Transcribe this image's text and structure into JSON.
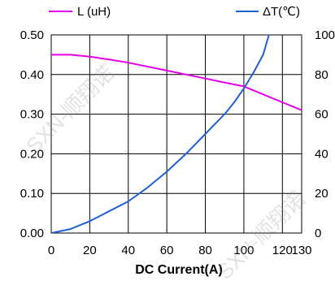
{
  "chart_data": {
    "type": "line",
    "xlabel": "DC Current(A)",
    "x_ticks": [
      "0",
      "20",
      "40",
      "60",
      "80",
      "100",
      "120",
      "130"
    ],
    "xlim": [
      0,
      130
    ],
    "y_left": {
      "ticks": [
        "0.00",
        "0.10",
        "0.20",
        "0.30",
        "0.40",
        "0.50"
      ],
      "lim": [
        0,
        0.5
      ]
    },
    "y_right": {
      "ticks": [
        "0",
        "20",
        "40",
        "60",
        "80",
        "100"
      ],
      "lim": [
        0,
        100
      ]
    },
    "grid": true,
    "legend_position": "top",
    "series": [
      {
        "name": "L (uH)",
        "axis": "left",
        "color": "#e600e6",
        "x": [
          0,
          10,
          20,
          30,
          40,
          50,
          60,
          70,
          80,
          90,
          100,
          110,
          120,
          130
        ],
        "y": [
          0.45,
          0.45,
          0.445,
          0.438,
          0.43,
          0.42,
          0.41,
          0.4,
          0.39,
          0.38,
          0.37,
          0.35,
          0.33,
          0.31
        ]
      },
      {
        "name": "ΔT(℃)",
        "axis": "right",
        "color": "#1f5fd6",
        "x": [
          0,
          10,
          20,
          30,
          40,
          50,
          60,
          70,
          80,
          90,
          95,
          100,
          105,
          110,
          113
        ],
        "y": [
          0,
          2,
          6,
          11,
          16,
          23,
          31,
          40,
          50,
          60,
          66,
          73,
          81,
          90,
          100
        ]
      }
    ]
  },
  "watermark": {
    "text": "SXN-顺翔诺"
  }
}
